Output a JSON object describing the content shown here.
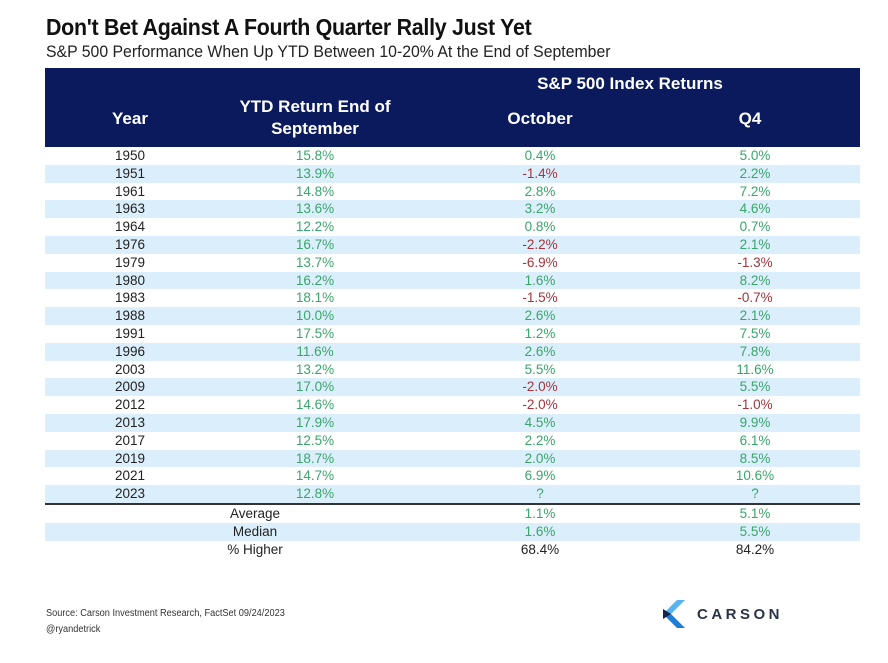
{
  "title": "Don't Bet Against A Fourth Quarter Rally Just Yet",
  "subtitle": "S&P 500 Performance When Up YTD Between 10-20% At the End of September",
  "header": {
    "group_label": "S&P 500 Index Returns",
    "year": "Year",
    "ytd": "YTD Return End of September",
    "october": "October",
    "q4": "Q4"
  },
  "colors": {
    "header_bg": "#0b1a5c",
    "alt_row": "#dbeefb",
    "positive": "#3aa56b",
    "negative": "#a3343c"
  },
  "chart_data": {
    "type": "table",
    "title": "Don't Bet Against A Fourth Quarter Rally Just Yet",
    "subtitle": "S&P 500 Performance When Up YTD Between 10-20% At the End of September",
    "columns": [
      "Year",
      "YTD Return End of September",
      "October",
      "Q4"
    ],
    "column_group": {
      "label": "S&P 500 Index Returns",
      "spans": [
        "October",
        "Q4"
      ]
    },
    "rows": [
      {
        "year": "1950",
        "ytd": "15.8%",
        "october": "0.4%",
        "q4": "5.0%"
      },
      {
        "year": "1951",
        "ytd": "13.9%",
        "october": "-1.4%",
        "q4": "2.2%"
      },
      {
        "year": "1961",
        "ytd": "14.8%",
        "october": "2.8%",
        "q4": "7.2%"
      },
      {
        "year": "1963",
        "ytd": "13.6%",
        "october": "3.2%",
        "q4": "4.6%"
      },
      {
        "year": "1964",
        "ytd": "12.2%",
        "october": "0.8%",
        "q4": "0.7%"
      },
      {
        "year": "1976",
        "ytd": "16.7%",
        "october": "-2.2%",
        "q4": "2.1%"
      },
      {
        "year": "1979",
        "ytd": "13.7%",
        "october": "-6.9%",
        "q4": "-1.3%"
      },
      {
        "year": "1980",
        "ytd": "16.2%",
        "october": "1.6%",
        "q4": "8.2%"
      },
      {
        "year": "1983",
        "ytd": "18.1%",
        "october": "-1.5%",
        "q4": "-0.7%"
      },
      {
        "year": "1988",
        "ytd": "10.0%",
        "october": "2.6%",
        "q4": "2.1%"
      },
      {
        "year": "1991",
        "ytd": "17.5%",
        "october": "1.2%",
        "q4": "7.5%"
      },
      {
        "year": "1996",
        "ytd": "11.6%",
        "october": "2.6%",
        "q4": "7.8%"
      },
      {
        "year": "2003",
        "ytd": "13.2%",
        "october": "5.5%",
        "q4": "11.6%"
      },
      {
        "year": "2009",
        "ytd": "17.0%",
        "october": "-2.0%",
        "q4": "5.5%"
      },
      {
        "year": "2012",
        "ytd": "14.6%",
        "october": "-2.0%",
        "q4": "-1.0%"
      },
      {
        "year": "2013",
        "ytd": "17.9%",
        "october": "4.5%",
        "q4": "9.9%"
      },
      {
        "year": "2017",
        "ytd": "12.5%",
        "october": "2.2%",
        "q4": "6.1%"
      },
      {
        "year": "2019",
        "ytd": "18.7%",
        "october": "2.0%",
        "q4": "8.5%"
      },
      {
        "year": "2021",
        "ytd": "14.7%",
        "october": "6.9%",
        "q4": "10.6%"
      },
      {
        "year": "2023",
        "ytd": "12.8%",
        "october": "?",
        "q4": "?"
      }
    ],
    "summary": [
      {
        "label": "Average",
        "october": "1.1%",
        "q4": "5.1%"
      },
      {
        "label": "Median",
        "october": "1.6%",
        "q4": "5.5%"
      },
      {
        "label": "% Higher",
        "october": "68.4%",
        "q4": "84.2%"
      }
    ]
  },
  "footer": {
    "source": "Source: Carson Investment Research, FactSet 09/24/2023",
    "handle": "@ryandetrick",
    "logo_text": "CARSON",
    "logo_icon": "carson-chevron-icon"
  }
}
